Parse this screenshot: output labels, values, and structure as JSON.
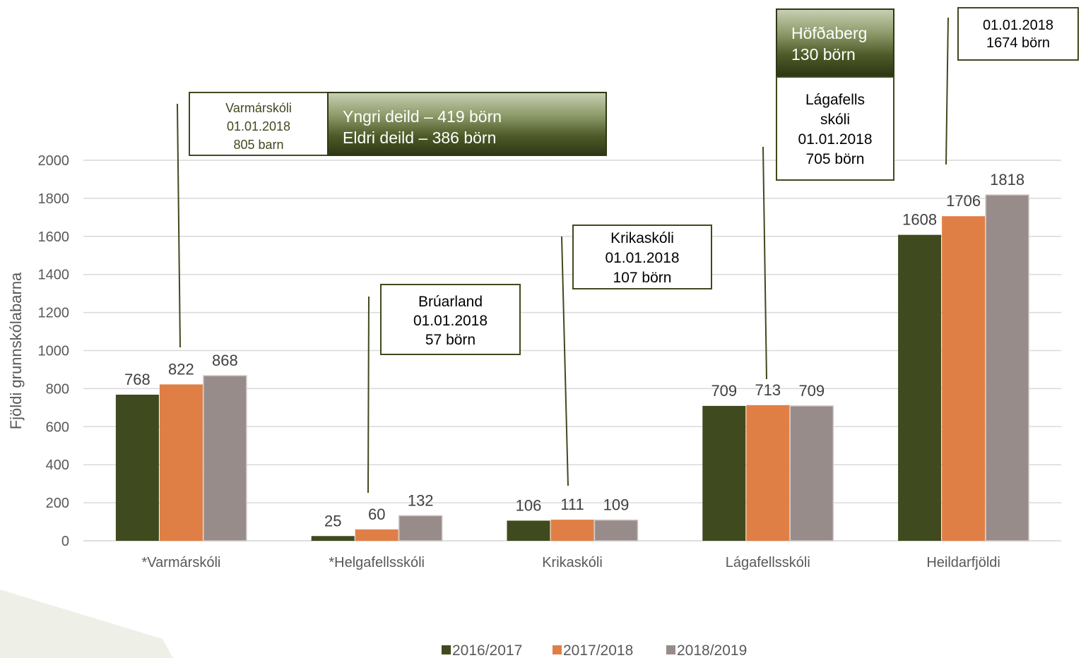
{
  "chart_data": {
    "type": "bar",
    "title": "",
    "xlabel": "",
    "ylabel": "Fjöldi grunnskólabarna",
    "ylim": [
      0,
      2000
    ],
    "yticks": [
      0,
      200,
      400,
      600,
      800,
      1000,
      1200,
      1400,
      1600,
      1800,
      2000
    ],
    "grid": true,
    "legend_position": "bottom",
    "categories": [
      "*Varmárskóli",
      "*Helgafellsskóli",
      "Krikaskóli",
      "Lágafellsskóli",
      "Heildarfjöldi"
    ],
    "series": [
      {
        "name": "2016/2017",
        "color": "#3f4a1e",
        "values": [
          768,
          25,
          106,
          709,
          1608
        ]
      },
      {
        "name": "2017/2018",
        "color": "#e07f45",
        "values": [
          822,
          60,
          111,
          713,
          1706
        ]
      },
      {
        "name": "2018/2019",
        "color": "#978c8a",
        "values": [
          868,
          132,
          109,
          709,
          1818
        ]
      }
    ]
  },
  "annotations": {
    "varmarskoli": [
      "Varmárskóli",
      "01.01.2018",
      "805 barn"
    ],
    "varmarskoli_deildir": [
      "Yngri deild – 419 börn",
      "Eldri deild – 386 börn"
    ],
    "bruarland": [
      "Brúarland",
      "01.01.2018",
      "57 börn"
    ],
    "krikaskoli": [
      "Krikaskóli",
      "01.01.2018",
      "107 börn"
    ],
    "hofdaberg": [
      "Höfðaberg",
      "130 börn"
    ],
    "lagafellsskoli": [
      "Lágafells",
      "skóli",
      "01.01.2018",
      "705 börn"
    ],
    "heildarfjoldi": [
      "01.01.2018",
      "1674 börn"
    ]
  }
}
